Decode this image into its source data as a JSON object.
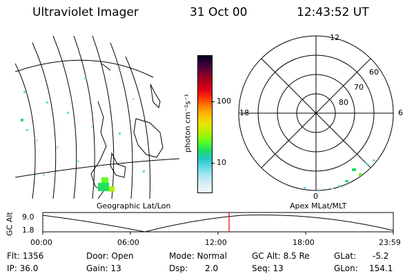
{
  "header": {
    "instrument": "Ultraviolet Imager",
    "date": "31 Oct 00",
    "time": "12:43:52 UT"
  },
  "colorbar": {
    "unit_label": "photon cm⁻²s⁻¹",
    "ticks": [
      "100",
      "10"
    ],
    "colors": [
      "#0a0020",
      "#3a0040",
      "#7a0030",
      "#b00018",
      "#e0001a",
      "#ff3a00",
      "#ff8a00",
      "#ffbf00",
      "#e8e600",
      "#b4f000",
      "#60ff20",
      "#20e060",
      "#20c8c0",
      "#60d8e8",
      "#a8e8f0",
      "#d8f0f4",
      "#f4f8fa"
    ]
  },
  "polar_plot": {
    "mlt_labels": [
      "12",
      "18",
      "6",
      "0"
    ],
    "lat_labels": [
      "60",
      "70",
      "80"
    ]
  },
  "map_labels": {
    "left": "Geographic Lat/Lon",
    "right": "Apex MLat/MLT"
  },
  "altitude_strip": {
    "axis_label": "GC Alt",
    "y_ticks": [
      "9.0",
      "1.8"
    ],
    "x_ticks": [
      "00:00",
      "06:00",
      "12:00",
      "18:00",
      "23:59"
    ],
    "current_time_marker": "12:43"
  },
  "info": {
    "flt": "Flt: 1356",
    "ip": "IP: 36.0",
    "door": "Door: Open",
    "gain": "Gain: 13",
    "mode": "Mode: Normal",
    "dsp_label": "Dsp:",
    "dsp_value": "2.0",
    "gc_alt": "GC Alt: 8.5 Re",
    "seq": "Seq: 13",
    "glat_label": "GLat:",
    "glat_value": "-5.2",
    "glon_label": "GLon:",
    "glon_value": "154.1"
  }
}
